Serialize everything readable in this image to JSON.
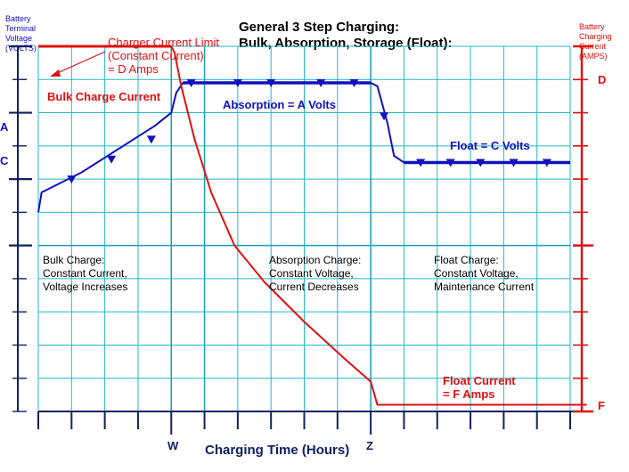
{
  "chart_data": {
    "type": "line",
    "title_line1": "General 3 Step Charging:",
    "title_line2": "Bulk, Absorption, Storage (Float):",
    "left_axis_label": [
      "Battery",
      "Terminal",
      "Voltage",
      "(VOLTS)"
    ],
    "right_axis_label": [
      "Battery",
      "Charging",
      "Current",
      "(AMPS)"
    ],
    "xlabel": "Charging Time (Hours)",
    "x_tick_labels": {
      "w": "W",
      "z": "Z"
    },
    "left_tick_labels": {
      "a": "A",
      "c": "C"
    },
    "right_tick_labels": {
      "d": "D",
      "f": "F"
    },
    "annotations": {
      "current_limit": [
        "Charger Current Limit",
        "(Constant Current)",
        "= D Amps"
      ],
      "bulk_current": "Bulk Charge Current",
      "absorption_volts": "Absorption = A Volts",
      "float_volts": "Float = C Volts",
      "float_current": [
        "Float Current",
        "= F Amps"
      ]
    },
    "phases": {
      "bulk": [
        "Bulk Charge:",
        "Constant Current,",
        "Voltage Increases"
      ],
      "absorption": [
        "Absorption Charge:",
        "Constant Voltage,",
        "Current Decreases"
      ],
      "float": [
        "Float Charge:",
        "Constant Voltage,",
        "Maintenance Current"
      ]
    },
    "series": [
      {
        "color": "#1010c0",
        "points": [
          [
            0,
            6
          ],
          [
            0.1,
            6.6
          ],
          [
            1.3,
            7.2
          ],
          [
            3.5,
            8.6
          ],
          [
            4.0,
            9.0
          ],
          [
            4.15,
            9.6
          ],
          [
            4.35,
            9.9
          ],
          [
            10,
            9.9
          ],
          [
            10.2,
            9.8
          ],
          [
            10.5,
            8.7
          ],
          [
            10.7,
            7.7
          ],
          [
            11,
            7.5
          ],
          [
            16,
            7.5
          ]
        ],
        "markers": [
          [
            1.0,
            7.0
          ],
          [
            2.2,
            7.6
          ],
          [
            3.4,
            8.2
          ],
          [
            4.6,
            9.9
          ],
          [
            6.0,
            9.9
          ],
          [
            7.0,
            9.9
          ],
          [
            8.5,
            9.9
          ],
          [
            9.5,
            9.9
          ],
          [
            10.4,
            8.9
          ],
          [
            11.5,
            7.5
          ],
          [
            12.4,
            7.5
          ],
          [
            13.3,
            7.5
          ],
          [
            14.3,
            7.5
          ],
          [
            15.3,
            7.5
          ]
        ]
      },
      {
        "color": "#e01010",
        "points": [
          [
            0,
            11
          ],
          [
            4,
            11
          ],
          [
            4.1,
            10.8
          ],
          [
            4.3,
            9.8
          ],
          [
            4.7,
            8.2
          ],
          [
            5.2,
            6.6
          ],
          [
            5.9,
            5.0
          ],
          [
            6.8,
            3.9
          ],
          [
            8,
            2.7
          ],
          [
            9.2,
            1.6
          ],
          [
            10,
            0.9
          ],
          [
            10.2,
            0.2
          ],
          [
            10.8,
            0.2
          ],
          [
            16.5,
            0.2
          ]
        ]
      }
    ],
    "x_range": [
      0,
      16
    ],
    "y_range": [
      0,
      11
    ],
    "grid": true,
    "colors": {
      "grid": "#22b8c8",
      "volts": "#1010c0",
      "amps": "#e01010",
      "axis": "#102060"
    }
  }
}
